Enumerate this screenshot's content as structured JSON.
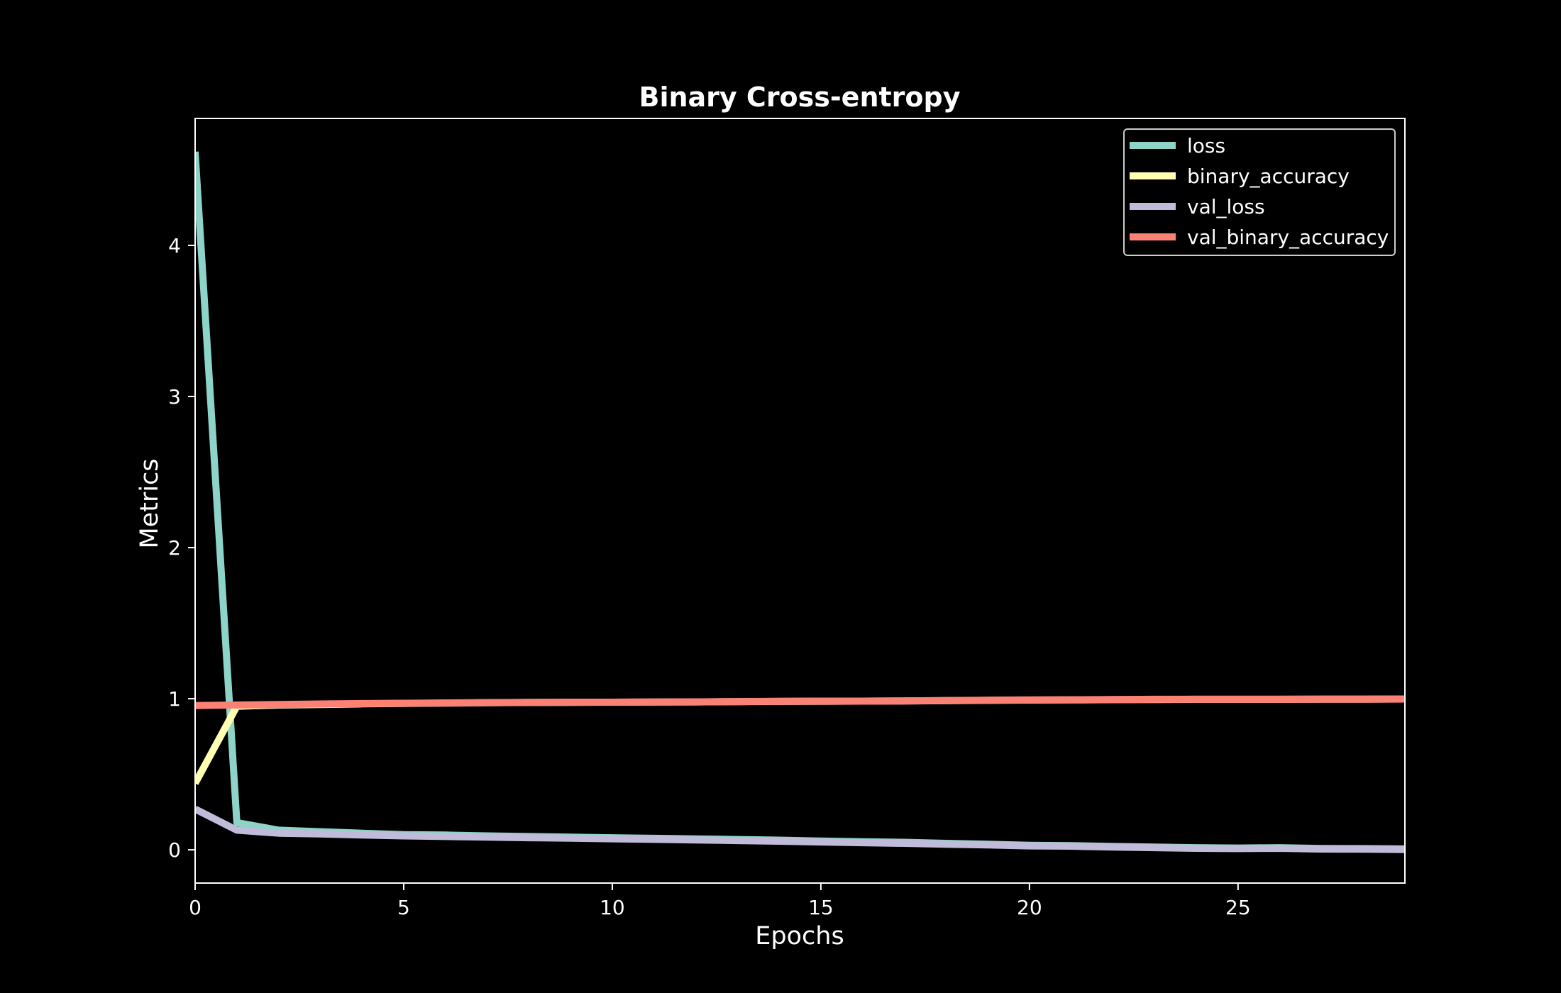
{
  "chart_data": {
    "type": "line",
    "title": "Binary Cross-entropy",
    "xlabel": "Epochs",
    "ylabel": "Metrics",
    "xlim": [
      0,
      29
    ],
    "ylim": [
      -0.22,
      4.84
    ],
    "xticks": [
      0,
      5,
      10,
      15,
      20,
      25
    ],
    "yticks": [
      0,
      1,
      2,
      3,
      4
    ],
    "grid": false,
    "legend_position": "top-right",
    "background": "#000000",
    "foreground": "#ffffff",
    "x": [
      0,
      1,
      2,
      3,
      4,
      5,
      6,
      7,
      8,
      9,
      10,
      11,
      12,
      13,
      14,
      15,
      16,
      17,
      18,
      19,
      20,
      21,
      22,
      23,
      24,
      25,
      26,
      27,
      28,
      29
    ],
    "series": [
      {
        "name": "loss",
        "color": "#8dd3c7",
        "values": [
          4.62,
          0.18,
          0.13,
          0.12,
          0.11,
          0.1,
          0.098,
          0.092,
          0.088,
          0.084,
          0.08,
          0.076,
          0.072,
          0.068,
          0.064,
          0.058,
          0.053,
          0.05,
          0.043,
          0.037,
          0.03,
          0.028,
          0.022,
          0.018,
          0.014,
          0.012,
          0.014,
          0.009,
          0.008,
          0.006
        ]
      },
      {
        "name": "binary_accuracy",
        "color": "#feffb3",
        "values": [
          0.44,
          0.95,
          0.958,
          0.962,
          0.966,
          0.969,
          0.971,
          0.973,
          0.975,
          0.976,
          0.977,
          0.978,
          0.979,
          0.98,
          0.982,
          0.983,
          0.984,
          0.985,
          0.987,
          0.989,
          0.991,
          0.992,
          0.994,
          0.995,
          0.996,
          0.996,
          0.996,
          0.997,
          0.997,
          0.998
        ]
      },
      {
        "name": "val_loss",
        "color": "#bfbbd9",
        "values": [
          0.27,
          0.13,
          0.11,
          0.105,
          0.098,
          0.092,
          0.088,
          0.084,
          0.08,
          0.077,
          0.073,
          0.069,
          0.065,
          0.061,
          0.057,
          0.052,
          0.047,
          0.043,
          0.037,
          0.032,
          0.026,
          0.024,
          0.018,
          0.014,
          0.01,
          0.008,
          0.01,
          0.005,
          0.004,
          0.002
        ]
      },
      {
        "name": "val_binary_accuracy",
        "color": "#fa8174",
        "values": [
          0.955,
          0.958,
          0.962,
          0.965,
          0.968,
          0.97,
          0.972,
          0.974,
          0.976,
          0.977,
          0.977,
          0.978,
          0.979,
          0.981,
          0.983,
          0.984,
          0.984,
          0.985,
          0.988,
          0.99,
          0.992,
          0.993,
          0.995,
          0.996,
          0.996,
          0.996,
          0.996,
          0.997,
          0.997,
          0.998
        ]
      }
    ]
  }
}
